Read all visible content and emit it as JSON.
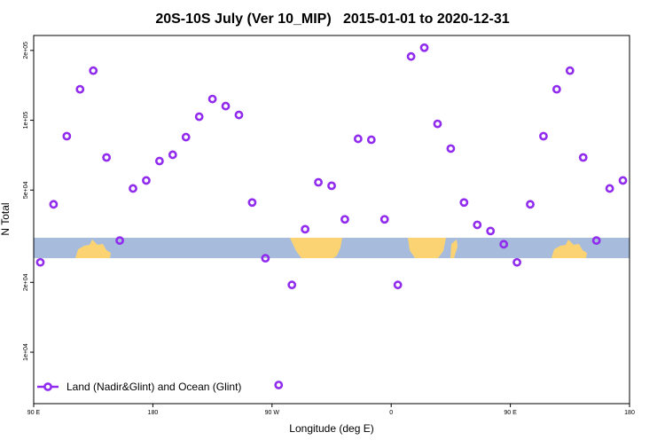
{
  "chart_data": {
    "type": "scatter",
    "title": "20S-10S July (Ver 10_MIP)   2015-01-01 to 2020-12-31",
    "xlabel": "Longitude (deg E)",
    "ylabel": "N Total",
    "log_y": true,
    "xlim": [
      90,
      540
    ],
    "ylim": [
      6000,
      232000
    ],
    "xticks": [
      {
        "value": 90,
        "label": "90 E"
      },
      180,
      {
        "value": 270,
        "label": "90 W"
      },
      {
        "value": 360,
        "label": "0"
      },
      {
        "value": 450,
        "label": "90 E"
      },
      {
        "value": 540,
        "label": "180"
      }
    ],
    "yticks": [
      {
        "value": 10000,
        "label": "1e+04"
      },
      {
        "value": 20000,
        "label": "2e+04"
      },
      {
        "value": 50000,
        "label": "5e+04"
      },
      {
        "value": 100000,
        "label": "1e+05"
      },
      {
        "value": 200000,
        "label": "2e+05"
      }
    ],
    "legend": "bottom-left",
    "series": [
      {
        "name": "Land (Nadir&Glint) and Ocean (Glint)",
        "color": "#912cee",
        "x": [
          95,
          105,
          115,
          125,
          135,
          145,
          155,
          165,
          175,
          185,
          195,
          205,
          215,
          225,
          235,
          245,
          255,
          265,
          275,
          285,
          295,
          305,
          315,
          325,
          335,
          345,
          355,
          365,
          375,
          385,
          395,
          405,
          415,
          425,
          435,
          445,
          455,
          465,
          475,
          485,
          495,
          505,
          515,
          525,
          535
        ],
        "values": [
          24400,
          43400,
          85400,
          136000,
          163600,
          69100,
          30300,
          50800,
          55000,
          66700,
          71000,
          84600,
          103600,
          123500,
          115100,
          105400,
          44200,
          25400,
          7220,
          19500,
          33900,
          54000,
          52200,
          37400,
          83200,
          82400,
          37400,
          19500,
          188300,
          205500,
          96500,
          75500,
          44200,
          35400,
          33300,
          29200,
          24400,
          43400,
          85400,
          136000,
          163600,
          69100,
          30300,
          50800,
          55000
        ]
      }
    ]
  }
}
